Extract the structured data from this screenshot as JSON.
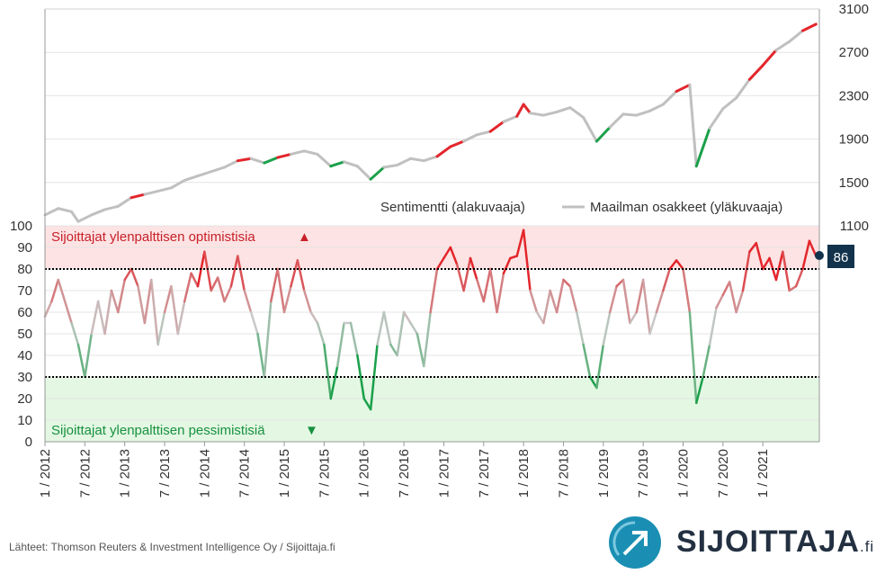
{
  "chart_data": {
    "type": "line",
    "panels": [
      {
        "name": "upper",
        "series": [
          {
            "name": "Maailman osakkeet (yläkuvaaja)",
            "color": "#c0c0c0"
          }
        ],
        "y_right_ticks": [
          "3100",
          "2700",
          "2300",
          "1900",
          "1500",
          "1100"
        ],
        "ylim": [
          1100,
          3100
        ],
        "points": [
          [
            "2012-01",
            1200
          ],
          [
            "2012-03",
            1260
          ],
          [
            "2012-05",
            1230
          ],
          [
            "2012-06",
            1140
          ],
          [
            "2012-08",
            1200
          ],
          [
            "2012-10",
            1250
          ],
          [
            "2012-12",
            1280
          ],
          [
            "2013-02",
            1360
          ],
          [
            "2013-04",
            1390
          ],
          [
            "2013-06",
            1420
          ],
          [
            "2013-08",
            1450
          ],
          [
            "2013-10",
            1520
          ],
          [
            "2013-12",
            1560
          ],
          [
            "2014-02",
            1600
          ],
          [
            "2014-04",
            1640
          ],
          [
            "2014-06",
            1700
          ],
          [
            "2014-08",
            1720
          ],
          [
            "2014-10",
            1680
          ],
          [
            "2014-12",
            1730
          ],
          [
            "2015-02",
            1760
          ],
          [
            "2015-04",
            1790
          ],
          [
            "2015-06",
            1760
          ],
          [
            "2015-08",
            1650
          ],
          [
            "2015-10",
            1690
          ],
          [
            "2015-12",
            1650
          ],
          [
            "2016-02",
            1530
          ],
          [
            "2016-04",
            1640
          ],
          [
            "2016-06",
            1660
          ],
          [
            "2016-08",
            1720
          ],
          [
            "2016-10",
            1700
          ],
          [
            "2016-12",
            1740
          ],
          [
            "2017-02",
            1830
          ],
          [
            "2017-04",
            1880
          ],
          [
            "2017-06",
            1940
          ],
          [
            "2017-08",
            1970
          ],
          [
            "2017-10",
            2060
          ],
          [
            "2017-12",
            2110
          ],
          [
            "2018-01",
            2220
          ],
          [
            "2018-02",
            2140
          ],
          [
            "2018-04",
            2120
          ],
          [
            "2018-06",
            2150
          ],
          [
            "2018-08",
            2190
          ],
          [
            "2018-10",
            2100
          ],
          [
            "2018-12",
            1880
          ],
          [
            "2019-02",
            2010
          ],
          [
            "2019-04",
            2130
          ],
          [
            "2019-06",
            2120
          ],
          [
            "2019-08",
            2160
          ],
          [
            "2019-10",
            2220
          ],
          [
            "2019-12",
            2340
          ],
          [
            "2020-02",
            2400
          ],
          [
            "2020-03",
            1650
          ],
          [
            "2020-05",
            2000
          ],
          [
            "2020-07",
            2180
          ],
          [
            "2020-09",
            2280
          ],
          [
            "2020-11",
            2450
          ],
          [
            "2021-01",
            2580
          ],
          [
            "2021-03",
            2720
          ],
          [
            "2021-05",
            2800
          ],
          [
            "2021-07",
            2900
          ],
          [
            "2021-09",
            2960
          ]
        ]
      },
      {
        "name": "lower",
        "series": [
          {
            "name": "Sentimentti (alakuvaaja)",
            "color_high": "#e3262c",
            "color_mid": "#c8c8c8",
            "color_low": "#1aa04a"
          }
        ],
        "y_left_ticks": [
          "100",
          "90",
          "80",
          "70",
          "60",
          "50",
          "40",
          "30",
          "20",
          "10",
          "0"
        ],
        "ylim": [
          0,
          100
        ],
        "zones": {
          "optimism_threshold": 80,
          "pessimism_threshold": 30,
          "optimism_color": "#fde3e3",
          "pessimism_color": "#e3f7e3"
        },
        "points": [
          [
            "2012-01",
            58
          ],
          [
            "2012-02",
            65
          ],
          [
            "2012-03",
            75
          ],
          [
            "2012-05",
            55
          ],
          [
            "2012-06",
            45
          ],
          [
            "2012-07",
            30
          ],
          [
            "2012-08",
            50
          ],
          [
            "2012-09",
            65
          ],
          [
            "2012-10",
            50
          ],
          [
            "2012-11",
            70
          ],
          [
            "2012-12",
            60
          ],
          [
            "2013-01",
            75
          ],
          [
            "2013-02",
            80
          ],
          [
            "2013-03",
            72
          ],
          [
            "2013-04",
            55
          ],
          [
            "2013-05",
            75
          ],
          [
            "2013-06",
            45
          ],
          [
            "2013-07",
            60
          ],
          [
            "2013-08",
            72
          ],
          [
            "2013-09",
            50
          ],
          [
            "2013-10",
            65
          ],
          [
            "2013-11",
            78
          ],
          [
            "2013-12",
            72
          ],
          [
            "2014-01",
            88
          ],
          [
            "2014-02",
            70
          ],
          [
            "2014-03",
            76
          ],
          [
            "2014-04",
            65
          ],
          [
            "2014-05",
            72
          ],
          [
            "2014-06",
            86
          ],
          [
            "2014-07",
            70
          ],
          [
            "2014-08",
            60
          ],
          [
            "2014-09",
            50
          ],
          [
            "2014-10",
            30
          ],
          [
            "2014-11",
            65
          ],
          [
            "2014-12",
            80
          ],
          [
            "2015-01",
            60
          ],
          [
            "2015-02",
            72
          ],
          [
            "2015-03",
            84
          ],
          [
            "2015-04",
            70
          ],
          [
            "2015-05",
            60
          ],
          [
            "2015-06",
            55
          ],
          [
            "2015-07",
            45
          ],
          [
            "2015-08",
            20
          ],
          [
            "2015-09",
            35
          ],
          [
            "2015-10",
            55
          ],
          [
            "2015-11",
            55
          ],
          [
            "2015-12",
            40
          ],
          [
            "2016-01",
            20
          ],
          [
            "2016-02",
            15
          ],
          [
            "2016-03",
            45
          ],
          [
            "2016-04",
            60
          ],
          [
            "2016-05",
            45
          ],
          [
            "2016-06",
            40
          ],
          [
            "2016-07",
            60
          ],
          [
            "2016-08",
            55
          ],
          [
            "2016-09",
            50
          ],
          [
            "2016-10",
            35
          ],
          [
            "2016-11",
            60
          ],
          [
            "2016-12",
            80
          ],
          [
            "2017-01",
            85
          ],
          [
            "2017-02",
            90
          ],
          [
            "2017-03",
            82
          ],
          [
            "2017-04",
            70
          ],
          [
            "2017-05",
            85
          ],
          [
            "2017-06",
            75
          ],
          [
            "2017-07",
            65
          ],
          [
            "2017-08",
            80
          ],
          [
            "2017-09",
            60
          ],
          [
            "2017-10",
            78
          ],
          [
            "2017-11",
            85
          ],
          [
            "2017-12",
            86
          ],
          [
            "2018-01",
            98
          ],
          [
            "2018-02",
            70
          ],
          [
            "2018-03",
            60
          ],
          [
            "2018-04",
            55
          ],
          [
            "2018-05",
            70
          ],
          [
            "2018-06",
            60
          ],
          [
            "2018-07",
            75
          ],
          [
            "2018-08",
            72
          ],
          [
            "2018-09",
            60
          ],
          [
            "2018-10",
            45
          ],
          [
            "2018-11",
            30
          ],
          [
            "2018-12",
            25
          ],
          [
            "2019-01",
            45
          ],
          [
            "2019-02",
            60
          ],
          [
            "2019-03",
            72
          ],
          [
            "2019-04",
            75
          ],
          [
            "2019-05",
            55
          ],
          [
            "2019-06",
            60
          ],
          [
            "2019-07",
            75
          ],
          [
            "2019-08",
            50
          ],
          [
            "2019-09",
            60
          ],
          [
            "2019-10",
            70
          ],
          [
            "2019-11",
            80
          ],
          [
            "2019-12",
            84
          ],
          [
            "2020-01",
            80
          ],
          [
            "2020-02",
            60
          ],
          [
            "2020-03",
            18
          ],
          [
            "2020-04",
            30
          ],
          [
            "2020-05",
            45
          ],
          [
            "2020-06",
            62
          ],
          [
            "2020-07",
            68
          ],
          [
            "2020-08",
            74
          ],
          [
            "2020-09",
            60
          ],
          [
            "2020-10",
            70
          ],
          [
            "2020-11",
            88
          ],
          [
            "2020-12",
            92
          ],
          [
            "2021-01",
            80
          ],
          [
            "2021-02",
            85
          ],
          [
            "2021-03",
            75
          ],
          [
            "2021-04",
            88
          ],
          [
            "2021-05",
            70
          ],
          [
            "2021-06",
            72
          ],
          [
            "2021-07",
            80
          ],
          [
            "2021-08",
            93
          ],
          [
            "2021-09",
            86
          ]
        ],
        "current_value": "86"
      }
    ],
    "x_tick_labels": [
      "1 / 2012",
      "7 / 2012",
      "1 / 2013",
      "7 / 2013",
      "1 / 2014",
      "7 / 2014",
      "1 / 2015",
      "7 / 2015",
      "1 / 2016",
      "7 / 2016",
      "1 / 2017",
      "7 / 2017",
      "1 / 2018",
      "7 / 2018",
      "1 / 2019",
      "7 / 2019",
      "1 / 2020",
      "7 / 2020",
      "1 / 2021"
    ],
    "annotations": {
      "optimism_label": "Sijoittajat ylenpalttisen optimistisia",
      "optimism_arrow": "▲",
      "pessimism_label": "Sijoittajat ylenpalttisen pessimistisiä",
      "pessimism_arrow": "▼"
    },
    "legend": {
      "placement": "bottom-right of upper panel",
      "items": [
        {
          "label": "Sentimentti (alakuvaaja)",
          "icon": "gradient-line"
        },
        {
          "label": "Maailman osakkeet (yläkuvaaja)",
          "icon": "gray-line"
        }
      ]
    },
    "grid": true
  },
  "footer": {
    "source": "Lähteet: Thomson Reuters & Investment Intelligence Oy / Sijoittaja.fi",
    "logo_name": "SIJOITTAJA",
    "logo_suffix": ".fi",
    "logo_icon": "arrow-up-right-icon"
  }
}
